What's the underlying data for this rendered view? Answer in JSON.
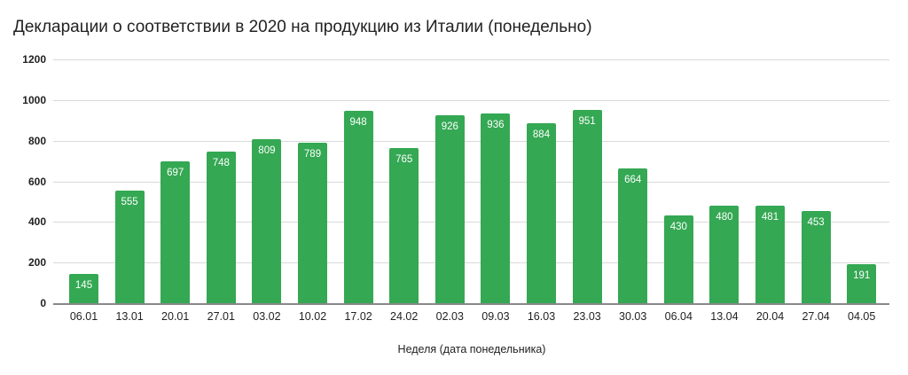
{
  "chart_data": {
    "type": "bar",
    "title": "Декларации о соответствии в 2020 на продукцию из Италии (понедельно)",
    "xlabel": "Неделя (дата понедельника)",
    "ylabel": "",
    "ylim": [
      0,
      1200
    ],
    "yticks": [
      "0",
      "200",
      "400",
      "600",
      "800",
      "1000",
      "1200"
    ],
    "grid": true,
    "legend": "none",
    "bar_color": "#34a853",
    "categories": [
      "06.01",
      "13.01",
      "20.01",
      "27.01",
      "03.02",
      "10.02",
      "17.02",
      "24.02",
      "02.03",
      "09.03",
      "16.03",
      "23.03",
      "30.03",
      "06.04",
      "13.04",
      "20.04",
      "27.04",
      "04.05"
    ],
    "values": [
      145,
      555,
      697,
      748,
      809,
      789,
      948,
      765,
      926,
      936,
      884,
      951,
      664,
      430,
      480,
      481,
      453,
      191
    ]
  }
}
